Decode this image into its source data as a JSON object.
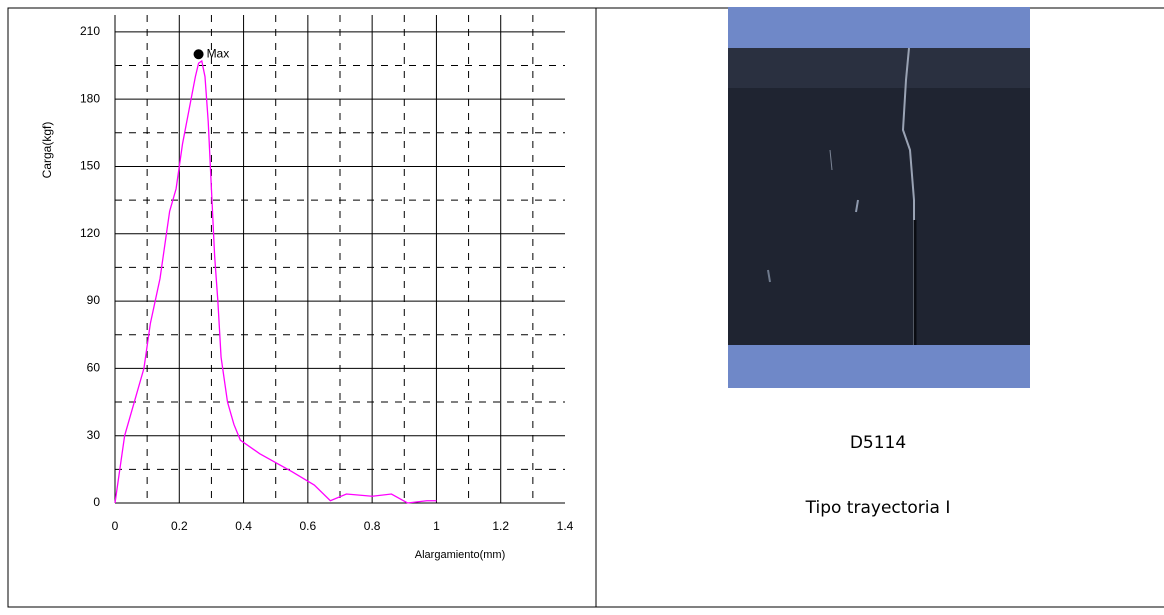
{
  "chart_data": {
    "type": "line",
    "y_label": "Carga(kgf)",
    "x_label": "Alargamiento(mm)",
    "x": [
      0,
      0.01,
      0.03,
      0.06,
      0.09,
      0.11,
      0.14,
      0.17,
      0.19,
      0.21,
      0.23,
      0.25,
      0.26,
      0.27,
      0.28,
      0.29,
      0.3,
      0.31,
      0.32,
      0.33,
      0.35,
      0.37,
      0.39,
      0.45,
      0.55,
      0.62,
      0.67,
      0.72,
      0.8,
      0.86,
      0.91,
      0.97,
      1.0
    ],
    "series": [
      {
        "color": "#ff00ff",
        "values": [
          0,
          10,
          30,
          45,
          60,
          80,
          100,
          130,
          140,
          160,
          175,
          190,
          196,
          197,
          190,
          170,
          140,
          110,
          90,
          65,
          45,
          35,
          28,
          22,
          14,
          8,
          1,
          4,
          3,
          4,
          0,
          1,
          1
        ]
      }
    ],
    "annotation": {
      "x": 0.26,
      "y": 200,
      "label": "Max"
    },
    "xlim": [
      0,
      1.4
    ],
    "ylim": [
      0,
      217.5
    ],
    "xticks": [
      0,
      0.2,
      0.4,
      0.6,
      0.8,
      1,
      1.2,
      1.4
    ],
    "yticks": [
      0,
      30,
      60,
      90,
      120,
      150,
      180,
      210
    ],
    "grid": true,
    "minor_grid": true
  },
  "caption": {
    "code": "D5114",
    "description": "Tipo trayectoria I"
  }
}
